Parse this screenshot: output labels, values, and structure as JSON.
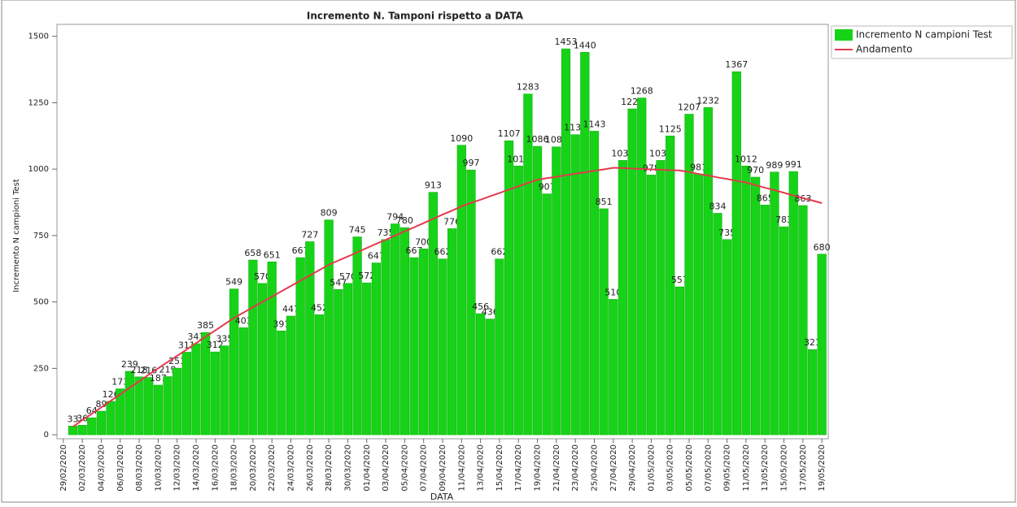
{
  "chart_data": {
    "type": "bar",
    "title": "Incremento N. Tamponi rispetto a DATA",
    "x_label": "DATA",
    "y_label": "Incremento N campioni Test",
    "categories": [
      "29/02/2020",
      null,
      "02/03/2020",
      null,
      "04/03/2020",
      null,
      "06/03/2020",
      null,
      "08/03/2020",
      null,
      "10/03/2020",
      null,
      "12/03/2020",
      null,
      "14/03/2020",
      null,
      "16/03/2020",
      null,
      "18/03/2020",
      null,
      "20/03/2020",
      null,
      "22/03/2020",
      null,
      "24/03/2020",
      null,
      "26/03/2020",
      null,
      "28/03/2020",
      null,
      "30/03/2020",
      null,
      "01/04/2020",
      null,
      "03/04/2020",
      null,
      "05/04/2020",
      null,
      "07/04/2020",
      null,
      "09/04/2020",
      null,
      "11/04/2020",
      null,
      "13/04/2020",
      null,
      "15/04/2020",
      null,
      "17/04/2020",
      null,
      "19/04/2020",
      null,
      "21/04/2020",
      null,
      "23/04/2020",
      null,
      "25/04/2020",
      null,
      "27/04/2020",
      null,
      "29/04/2020",
      null,
      "01/05/2020",
      null,
      "03/05/2020",
      null,
      "05/05/2020",
      null,
      "07/05/2020",
      null,
      "09/05/2020",
      null,
      "11/05/2020",
      null,
      "13/05/2020",
      null,
      "15/05/2020",
      null,
      "17/05/2020",
      null,
      "19/05/2020"
    ],
    "series": [
      {
        "name": "Incremento N campioni Test",
        "type": "bar",
        "color": "#17d317",
        "show_labels": true,
        "values": [
          null,
          33,
          36,
          64,
          89,
          126,
          173,
          239,
          218,
          216,
          187,
          219,
          251,
          311,
          343,
          385,
          312,
          335,
          549,
          403,
          658,
          570,
          651,
          391,
          447,
          667,
          727,
          452,
          809,
          547,
          570,
          745,
          572,
          647,
          735,
          794,
          780,
          667,
          700,
          913,
          662,
          776,
          1090,
          997,
          456,
          436,
          662,
          1107,
          1012,
          1283,
          1086,
          907,
          1084,
          1453,
          1130,
          1440,
          1143,
          851,
          510,
          1033,
          1227,
          1268,
          978,
          1033,
          1125,
          557,
          1207,
          981,
          1232,
          834,
          735,
          1367,
          1012,
          970,
          865,
          989,
          783,
          991,
          863,
          321,
          680
        ]
      },
      {
        "name": "Andamento",
        "type": "line",
        "color": "#e33a4c",
        "values": [
          null,
          30,
          55,
          79,
          103,
          128,
          152,
          177,
          201,
          226,
          250,
          274,
          297,
          321,
          345,
          369,
          392,
          416,
          440,
          460,
          480,
          500,
          520,
          540,
          560,
          580,
          600,
          620,
          640,
          656,
          671,
          687,
          703,
          719,
          734,
          750,
          766,
          781,
          797,
          813,
          829,
          844,
          860,
          873,
          885,
          898,
          910,
          923,
          935,
          948,
          960,
          966,
          971,
          977,
          983,
          988,
          994,
          999,
          1005,
          1004,
          1002,
          1001,
          999,
          998,
          996,
          995,
          989,
          982,
          976,
          969,
          963,
          956,
          950,
          940,
          930,
          921,
          911,
          901,
          891,
          882,
          872
        ]
      }
    ],
    "ylim": [
      -15,
      1545
    ],
    "yticks": [
      0,
      250,
      500,
      750,
      1000,
      1250,
      1500
    ],
    "grid": false,
    "legend": "outside-top-right"
  }
}
